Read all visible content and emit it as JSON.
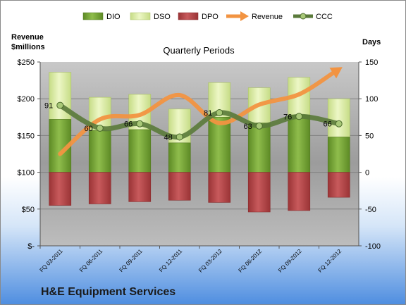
{
  "company": "H&E Equipment Services",
  "chart_data": {
    "type": "bar",
    "title": "Quarterly Periods",
    "left_axis_label": [
      "Revenue",
      "$millions"
    ],
    "right_axis_label": "Days",
    "left_ticks": [
      "$250",
      "$200",
      "$150",
      "$100",
      "$50",
      "$-"
    ],
    "right_ticks": [
      "150",
      "100",
      "50",
      "0",
      "-50",
      "-100"
    ],
    "left_range": [
      0,
      250
    ],
    "right_range": [
      -100,
      150
    ],
    "categories": [
      "FQ 03-2011",
      "FQ 06-2011",
      "FQ 09-2011",
      "FQ 12-2011",
      "FQ 03-2012",
      "FQ 06-2012",
      "FQ 09-2012",
      "FQ 12-2012"
    ],
    "legend": [
      "DIO",
      "DSO",
      "DPO",
      "Revenue",
      "CCC"
    ],
    "series": [
      {
        "name": "DIO",
        "axis": "right",
        "color": "#77a336",
        "values": [
          72,
          57,
          58,
          40,
          75,
          67,
          78,
          48
        ]
      },
      {
        "name": "DSO",
        "axis": "right",
        "color": "#d8ec9c",
        "values": [
          64,
          45,
          48,
          46,
          47,
          48,
          51,
          52
        ]
      },
      {
        "name": "DPO",
        "axis": "right",
        "color": "#bc4a4c",
        "values": [
          -45,
          -43,
          -40,
          -38,
          -41,
          -54,
          -52,
          -34
        ]
      },
      {
        "name": "Revenue",
        "axis": "left",
        "color": "#f29341",
        "values": [
          125,
          172,
          178,
          205,
          167,
          192,
          206,
          240
        ]
      },
      {
        "name": "CCC",
        "axis": "right",
        "color": "#5a7a3a",
        "values": [
          91,
          60,
          66,
          48,
          81,
          63,
          76,
          66
        ],
        "labels": [
          "91",
          "60",
          "66",
          "48",
          "81",
          "63",
          "76",
          "66"
        ]
      }
    ]
  }
}
